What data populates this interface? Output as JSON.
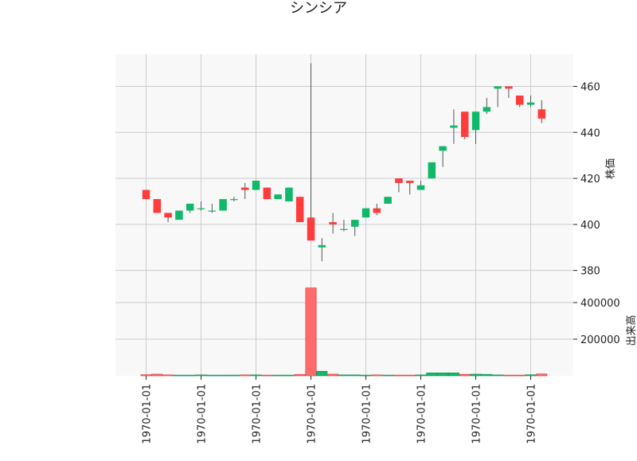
{
  "chart_data": {
    "type": "candlestick",
    "title": "シンシア",
    "ylabel": "株価",
    "volume_label": "出来高",
    "price_ylim": [
      374,
      474
    ],
    "price_yticks": [
      380,
      400,
      420,
      440,
      460
    ],
    "volume_ylim": [
      0,
      500000
    ],
    "volume_yticks": [
      200000,
      400000
    ],
    "x_tick_labels": [
      "1970-01-01",
      "1970-01-01",
      "1970-01-01",
      "1970-01-01",
      "1970-01-01",
      "1970-01-01",
      "1970-01-01",
      "1970-01-01"
    ],
    "x_tick_positions": [
      1,
      6,
      11,
      16,
      21,
      26,
      31,
      36
    ],
    "grid": true,
    "colors": {
      "up": "#10b96a",
      "down": "#ff3b3b",
      "volume_up": "#10b96a",
      "volume_down": "#ff6b6b",
      "wick": "#555555",
      "plot_bg": "#f8f8f8",
      "grid": "#cccccc"
    },
    "candles": [
      {
        "open": 415,
        "high": 415,
        "low": 411,
        "close": 411,
        "volume": 6000
      },
      {
        "open": 411,
        "high": 411,
        "low": 405,
        "close": 405,
        "volume": 9000
      },
      {
        "open": 405,
        "high": 405,
        "low": 401,
        "close": 403,
        "volume": 5000
      },
      {
        "open": 402,
        "high": 406,
        "low": 402,
        "close": 406,
        "volume": 4000
      },
      {
        "open": 406,
        "high": 409,
        "low": 405,
        "close": 409,
        "volume": 4000
      },
      {
        "open": 407,
        "high": 410,
        "low": 406,
        "close": 407,
        "volume": 5000
      },
      {
        "open": 406,
        "high": 409,
        "low": 405,
        "close": 406,
        "volume": 4000
      },
      {
        "open": 406,
        "high": 411,
        "low": 406,
        "close": 411,
        "volume": 4000
      },
      {
        "open": 411,
        "high": 412,
        "low": 410,
        "close": 411,
        "volume": 4000
      },
      {
        "open": 416,
        "high": 418,
        "low": 411,
        "close": 415,
        "volume": 5000
      },
      {
        "open": 415,
        "high": 419,
        "low": 415,
        "close": 419,
        "volume": 5000
      },
      {
        "open": 416,
        "high": 416,
        "low": 411,
        "close": 411,
        "volume": 4000
      },
      {
        "open": 411,
        "high": 413,
        "low": 411,
        "close": 413,
        "volume": 4000
      },
      {
        "open": 410,
        "high": 416,
        "low": 410,
        "close": 416,
        "volume": 4000
      },
      {
        "open": 412,
        "high": 412,
        "low": 401,
        "close": 401,
        "volume": 7000
      },
      {
        "open": 403,
        "high": 470,
        "low": 393,
        "close": 393,
        "volume": 480000
      },
      {
        "open": 390,
        "high": 394,
        "low": 384,
        "close": 391,
        "volume": 25000
      },
      {
        "open": 401,
        "high": 405,
        "low": 396,
        "close": 400,
        "volume": 9000
      },
      {
        "open": 398,
        "high": 402,
        "low": 397,
        "close": 398,
        "volume": 5000
      },
      {
        "open": 399,
        "high": 402,
        "low": 395,
        "close": 402,
        "volume": 5000
      },
      {
        "open": 403,
        "high": 407,
        "low": 403,
        "close": 407,
        "volume": 4000
      },
      {
        "open": 407,
        "high": 409,
        "low": 404,
        "close": 405,
        "volume": 5000
      },
      {
        "open": 409,
        "high": 412,
        "low": 409,
        "close": 412,
        "volume": 4000
      },
      {
        "open": 420,
        "high": 420,
        "low": 414,
        "close": 418,
        "volume": 4000
      },
      {
        "open": 419,
        "high": 419,
        "low": 413,
        "close": 418,
        "volume": 4000
      },
      {
        "open": 415,
        "high": 419,
        "low": 415,
        "close": 417,
        "volume": 5000
      },
      {
        "open": 420,
        "high": 427,
        "low": 420,
        "close": 427,
        "volume": 16000
      },
      {
        "open": 432,
        "high": 434,
        "low": 425,
        "close": 434,
        "volume": 16000
      },
      {
        "open": 442,
        "high": 450,
        "low": 435,
        "close": 443,
        "volume": 16000
      },
      {
        "open": 449,
        "high": 449,
        "low": 437,
        "close": 438,
        "volume": 8000
      },
      {
        "open": 441,
        "high": 449,
        "low": 435,
        "close": 449,
        "volume": 9000
      },
      {
        "open": 449,
        "high": 455,
        "low": 448,
        "close": 451,
        "volume": 8000
      },
      {
        "open": 459,
        "high": 460,
        "low": 451,
        "close": 460,
        "volume": 5000
      },
      {
        "open": 460,
        "high": 460,
        "low": 455,
        "close": 459,
        "volume": 4000
      },
      {
        "open": 456,
        "high": 456,
        "low": 451,
        "close": 452,
        "volume": 4000
      },
      {
        "open": 452,
        "high": 456,
        "low": 451,
        "close": 453,
        "volume": 6000
      },
      {
        "open": 450,
        "high": 454,
        "low": 444,
        "close": 446,
        "volume": 10000
      }
    ]
  }
}
